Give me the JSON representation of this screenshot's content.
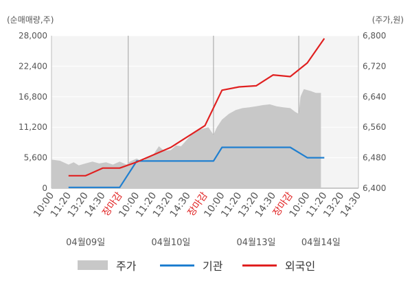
{
  "chart_data": {
    "type": "line",
    "left_unit": "(순매매량,주)",
    "right_unit": "(주가,원)",
    "y_left_ticks": [
      "28,000",
      "22,400",
      "16,800",
      "11,200",
      "5,600",
      "0"
    ],
    "y_left_range": [
      0,
      28000
    ],
    "y_right_ticks": [
      "6,800",
      "6,720",
      "6,640",
      "6,560",
      "6,480",
      "6,400"
    ],
    "y_right_range": [
      6400,
      6800
    ],
    "x_ticks": [
      {
        "label": "10:00",
        "red": false
      },
      {
        "label": "11:20",
        "red": false
      },
      {
        "label": "13:20",
        "red": false
      },
      {
        "label": "14:30",
        "red": false
      },
      {
        "label": "장마감",
        "red": true
      },
      {
        "label": "10:00",
        "red": false
      },
      {
        "label": "11:20",
        "red": false
      },
      {
        "label": "13:20",
        "red": false
      },
      {
        "label": "14:30",
        "red": false
      },
      {
        "label": "장마감",
        "red": true
      },
      {
        "label": "10:00",
        "red": false
      },
      {
        "label": "11:20",
        "red": false
      },
      {
        "label": "13:20",
        "red": false
      },
      {
        "label": "14:30",
        "red": false
      },
      {
        "label": "장마감",
        "red": true
      },
      {
        "label": "10:00",
        "red": false
      },
      {
        "label": "11:20",
        "red": false
      },
      {
        "label": "13:20",
        "red": false
      },
      {
        "label": "14:30",
        "red": false
      }
    ],
    "dates": [
      {
        "label": "04월09일",
        "tick_index": 2
      },
      {
        "label": "04월10일",
        "tick_index": 7
      },
      {
        "label": "04월13일",
        "tick_index": 12
      },
      {
        "label": "04월14일",
        "tick_index": 15.8
      }
    ],
    "day_boundaries": [
      4.5,
      9.5,
      14.5
    ],
    "series": [
      {
        "name": "주가",
        "kind": "area",
        "axis": "right",
        "color": "#c8c8c8",
        "points": [
          [
            0,
            6475
          ],
          [
            0.5,
            6472
          ],
          [
            1,
            6462
          ],
          [
            1.3,
            6468
          ],
          [
            1.6,
            6460
          ],
          [
            2,
            6465
          ],
          [
            2.4,
            6470
          ],
          [
            2.8,
            6465
          ],
          [
            3.2,
            6468
          ],
          [
            3.6,
            6462
          ],
          [
            4,
            6470
          ],
          [
            4.4,
            6462
          ],
          [
            4.6,
            6470
          ],
          [
            5,
            6478
          ],
          [
            5.3,
            6470
          ],
          [
            5.7,
            6482
          ],
          [
            6,
            6490
          ],
          [
            6.3,
            6510
          ],
          [
            6.6,
            6498
          ],
          [
            7,
            6500
          ],
          [
            7.3,
            6512
          ],
          [
            7.6,
            6510
          ],
          [
            8,
            6530
          ],
          [
            8.4,
            6550
          ],
          [
            8.8,
            6555
          ],
          [
            9.2,
            6560
          ],
          [
            9.5,
            6540
          ],
          [
            9.7,
            6560
          ],
          [
            10,
            6580
          ],
          [
            10.4,
            6595
          ],
          [
            10.8,
            6605
          ],
          [
            11.2,
            6610
          ],
          [
            11.6,
            6612
          ],
          [
            12,
            6615
          ],
          [
            12.4,
            6618
          ],
          [
            12.8,
            6620
          ],
          [
            13.2,
            6615
          ],
          [
            13.6,
            6612
          ],
          [
            14,
            6610
          ],
          [
            14.3,
            6600
          ],
          [
            14.5,
            6595
          ],
          [
            14.6,
            6640
          ],
          [
            14.8,
            6660
          ],
          [
            15.2,
            6655
          ],
          [
            15.5,
            6650
          ],
          [
            15.8,
            6650
          ]
        ]
      },
      {
        "name": "기관",
        "kind": "line",
        "axis": "left",
        "color": "#1f7fd0",
        "points": [
          [
            1,
            150
          ],
          [
            4,
            150
          ],
          [
            5,
            5000
          ],
          [
            9.5,
            5000
          ],
          [
            10,
            7500
          ],
          [
            14,
            7500
          ],
          [
            15,
            5600
          ],
          [
            16,
            5600
          ]
        ]
      },
      {
        "name": "외국인",
        "kind": "line",
        "axis": "left",
        "color": "#e02020",
        "points": [
          [
            1,
            2300
          ],
          [
            2,
            2300
          ],
          [
            3,
            3700
          ],
          [
            4,
            3700
          ],
          [
            5,
            4800
          ],
          [
            7,
            7500
          ],
          [
            9,
            11500
          ],
          [
            10,
            18000
          ],
          [
            11,
            18600
          ],
          [
            12,
            18800
          ],
          [
            13,
            20800
          ],
          [
            14,
            20500
          ],
          [
            15,
            23000
          ],
          [
            16,
            27500
          ]
        ]
      }
    ]
  }
}
